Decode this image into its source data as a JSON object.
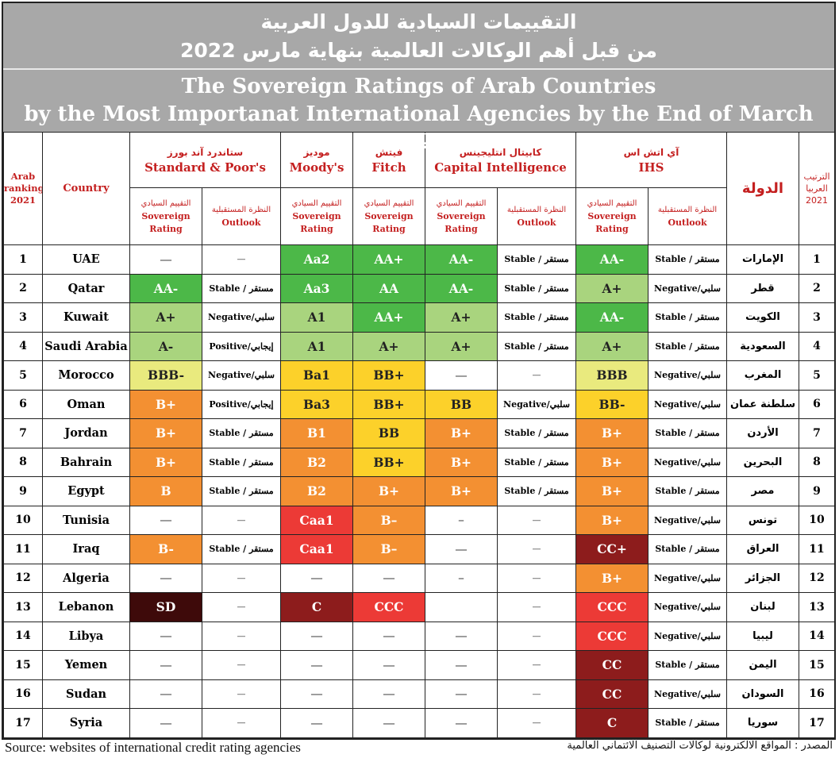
{
  "colors": {
    "AAA_AA": "#4cb848",
    "A": "#a9d47e",
    "BBB": "#e9ea7e",
    "BB": "#fcd12a",
    "B": "#f39032",
    "CCC": "#ec3a36",
    "C": "#8d1c1c",
    "SD": "#3e0a0a",
    "banner": "#a8a8a8",
    "header_text": "#c41f1f"
  },
  "title": {
    "ar_line1": "التقييمات السيادية للدول العربية",
    "ar_line2": "من قبل أهم الوكالات العالمية بنهاية مارس 2022",
    "en_line1": "The Sovereign Ratings of Arab Countries",
    "en_line2": "by the Most Importanat International Agencies by the End of March 2022"
  },
  "headers": {
    "rank_en": "Arab ranking 2021",
    "country_en": "Country",
    "country_ar": "الدولة",
    "rank_ar": "الترتيب العربيا 2021",
    "agencies": [
      {
        "ar": "ستاندرد آند بورز",
        "en": "Standard & Poor's"
      },
      {
        "ar": "موديز",
        "en": "Moody's"
      },
      {
        "ar": "فيتش",
        "en": "Fitch"
      },
      {
        "ar": "كابيتال انتليجينس",
        "en": "Capital Intelligence"
      },
      {
        "ar": "آي اتش اس",
        "en": "IHS"
      }
    ],
    "sovereign": {
      "ar": "التقييم السيادي",
      "en": "Sovereign Rating"
    },
    "outlook": {
      "ar": "النظرة المستقبلية",
      "en": "Outlook"
    }
  },
  "chart_data": {
    "type": "table",
    "title": "The Sovereign Ratings of Arab Countries by the Most Importanat International Agencies by the End of March 2022",
    "columns": [
      "Arab ranking 2021",
      "Country",
      "S&P Sovereign Rating",
      "S&P Outlook",
      "Moody's Sovereign Rating",
      "Fitch Sovereign Rating",
      "CI Sovereign Rating",
      "CI Outlook",
      "IHS Sovereign Rating",
      "IHS Outlook",
      "الدولة",
      "الترتيب العربيا 2021"
    ],
    "rows": [
      {
        "rank": "1",
        "country": "UAE",
        "ar": "الإمارات",
        "sp": "—",
        "sp_o": "—",
        "moodys": "Aa2",
        "fitch": "AA+",
        "ci": "AA-",
        "ci_o": "Stable / مستقر",
        "ihs": "AA-",
        "ihs_o": "Stable / مستقر"
      },
      {
        "rank": "2",
        "country": "Qatar",
        "ar": "قطر",
        "sp": "AA-",
        "sp_o": "Stable / مستقر",
        "moodys": "Aa3",
        "fitch": "AA",
        "ci": "AA-",
        "ci_o": "Stable / مستقر",
        "ihs": "A+",
        "ihs_o": "Negative/سلبي"
      },
      {
        "rank": "3",
        "country": "Kuwait",
        "ar": "الكويت",
        "sp": "A+",
        "sp_o": "Negative/سلبي",
        "moodys": "A1",
        "fitch": "AA+",
        "ci": "A+",
        "ci_o": "Stable / مستقر",
        "ihs": "AA-",
        "ihs_o": "Stable / مستقر"
      },
      {
        "rank": "4",
        "country": "Saudi Arabia",
        "ar": "السعودية",
        "sp": "A-",
        "sp_o": "Positive/إيجابي",
        "moodys": "A1",
        "fitch": "A+",
        "ci": "A+",
        "ci_o": "Stable / مستقر",
        "ihs": "A+",
        "ihs_o": "Stable / مستقر"
      },
      {
        "rank": "5",
        "country": "Morocco",
        "ar": "المغرب",
        "sp": "BBB-",
        "sp_o": "Negative/سلبي",
        "moodys": "Ba1",
        "fitch": "BB+",
        "ci": "—",
        "ci_o": "—",
        "ihs": "BBB",
        "ihs_o": "Negative/سلبي"
      },
      {
        "rank": "6",
        "country": "Oman",
        "ar": "سلطنة عمان",
        "sp": "B+",
        "sp_o": "Positive/إيجابي",
        "moodys": "Ba3",
        "fitch": "BB+",
        "ci": "BB",
        "ci_o": "Negative/سلبي",
        "ihs": "BB-",
        "ihs_o": "Negative/سلبي"
      },
      {
        "rank": "7",
        "country": "Jordan",
        "ar": "الأردن",
        "sp": "B+",
        "sp_o": "Stable / مستقر",
        "moodys": "B1",
        "fitch": "BB",
        "ci": "B+",
        "ci_o": "Stable / مستقر",
        "ihs": "B+",
        "ihs_o": "Stable / مستقر"
      },
      {
        "rank": "8",
        "country": "Bahrain",
        "ar": "البحرين",
        "sp": "B+",
        "sp_o": "Stable / مستقر",
        "moodys": "B2",
        "fitch": "BB+",
        "ci": "B+",
        "ci_o": "Stable / مستقر",
        "ihs": "B+",
        "ihs_o": "Negative/سلبي"
      },
      {
        "rank": "9",
        "country": "Egypt",
        "ar": "مصر",
        "sp": "B",
        "sp_o": "Stable / مستقر",
        "moodys": "B2",
        "fitch": "B+",
        "ci": "B+",
        "ci_o": "Stable / مستقر",
        "ihs": "B+",
        "ihs_o": "Stable / مستقر"
      },
      {
        "rank": "10",
        "country": "Tunisia",
        "ar": "تونس",
        "sp": "—",
        "sp_o": "—",
        "moodys": "Caa1",
        "fitch": "B–",
        "ci": "–",
        "ci_o": "—",
        "ihs": "B+",
        "ihs_o": "Negative/سلبي"
      },
      {
        "rank": "11",
        "country": "Iraq",
        "ar": "العراق",
        "sp": "B-",
        "sp_o": "Stable / مستقر",
        "moodys": "Caa1",
        "fitch": "B–",
        "ci": "—",
        "ci_o": "—",
        "ihs": "CC+",
        "ihs_o": "Stable / مستقر"
      },
      {
        "rank": "12",
        "country": "Algeria",
        "ar": "الجزائر",
        "sp": "—",
        "sp_o": "—",
        "moodys": "—",
        "fitch": "—",
        "ci": "–",
        "ci_o": "—",
        "ihs": "B+",
        "ihs_o": "Negative/سلبي"
      },
      {
        "rank": "13",
        "country": "Lebanon",
        "ar": "لبنان",
        "sp": "SD",
        "sp_o": "—",
        "moodys": "C",
        "fitch": "CCC",
        "ci": "",
        "ci_o": "—",
        "ihs": "CCC",
        "ihs_o": "Negative/سلبي"
      },
      {
        "rank": "14",
        "country": "Libya",
        "ar": "ليبيا",
        "sp": "—",
        "sp_o": "—",
        "moodys": "—",
        "fitch": "—",
        "ci": "—",
        "ci_o": "—",
        "ihs": "CCC",
        "ihs_o": "Negative/سلبي"
      },
      {
        "rank": "15",
        "country": "Yemen",
        "ar": "اليمن",
        "sp": "—",
        "sp_o": "—",
        "moodys": "—",
        "fitch": "—",
        "ci": "—",
        "ci_o": "—",
        "ihs": "CC",
        "ihs_o": "Stable / مستقر"
      },
      {
        "rank": "16",
        "country": "Sudan",
        "ar": "السودان",
        "sp": "—",
        "sp_o": "—",
        "moodys": "—",
        "fitch": "—",
        "ci": "—",
        "ci_o": "—",
        "ihs": "CC",
        "ihs_o": "Negative/سلبي"
      },
      {
        "rank": "17",
        "country": "Syria",
        "ar": "سوريا",
        "sp": "—",
        "sp_o": "—",
        "moodys": "—",
        "fitch": "—",
        "ci": "—",
        "ci_o": "—",
        "ihs": "C",
        "ihs_o": "Stable / مستقر"
      }
    ]
  },
  "source": {
    "en": "Source: websites of international credit rating agencies",
    "ar": "المصدر : المواقع الالكترونية لوكالات التصنيف الائتماني العالمية"
  }
}
